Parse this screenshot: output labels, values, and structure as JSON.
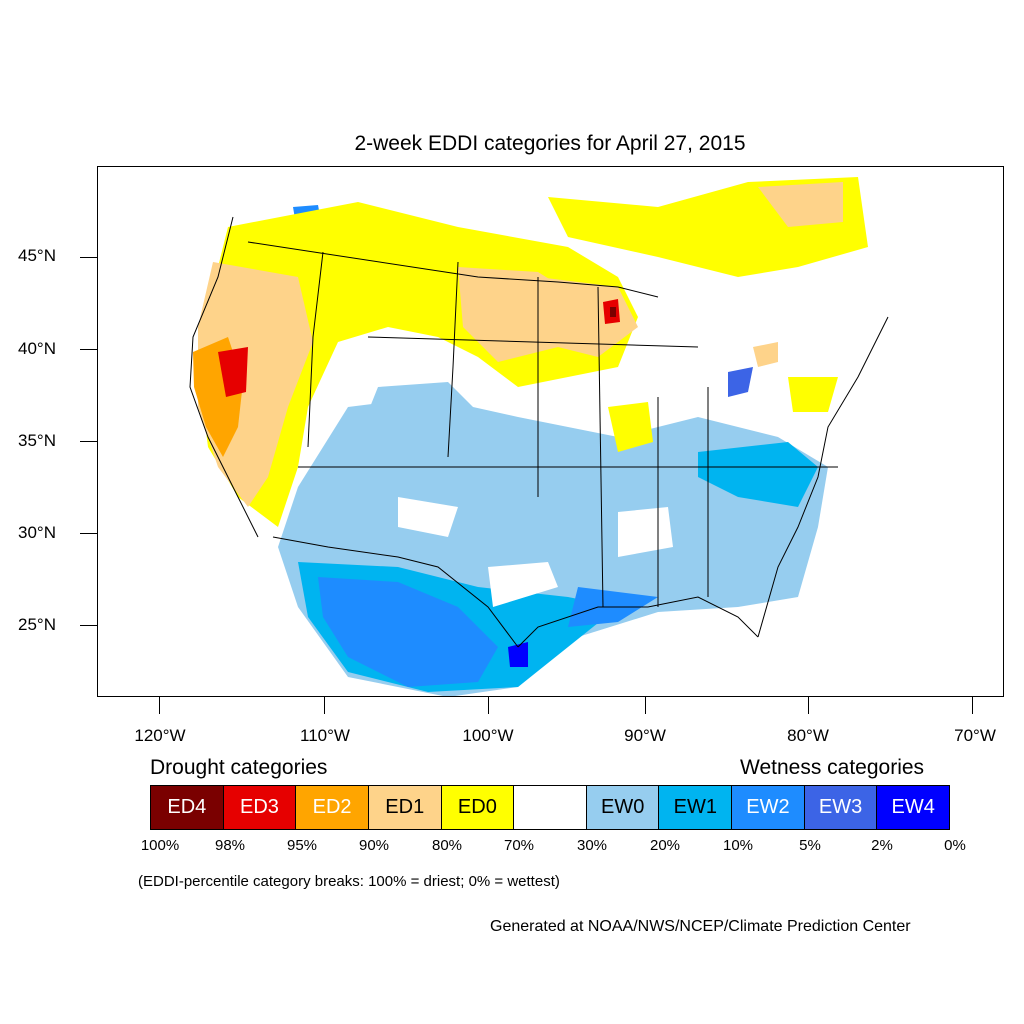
{
  "title": "2-week EDDI categories for April 27, 2015",
  "lat_labels": [
    "45°N",
    "40°N",
    "35°N",
    "30°N",
    "25°N"
  ],
  "lon_labels": [
    "120°W",
    "110°W",
    "100°W",
    "90°W",
    "80°W",
    "70°W"
  ],
  "legend": {
    "drought_heading": "Drought categories",
    "wetness_heading": "Wetness categories",
    "categories": [
      {
        "label": "ED4",
        "color": "#7a0000",
        "text_color": "#ffffff"
      },
      {
        "label": "ED3",
        "color": "#e60000",
        "text_color": "#ffffff"
      },
      {
        "label": "ED2",
        "color": "#ffa500",
        "text_color": "#ffffff"
      },
      {
        "label": "ED1",
        "color": "#fed38a",
        "text_color": "#000000"
      },
      {
        "label": "ED0",
        "color": "#ffff00",
        "text_color": "#000000"
      },
      {
        "label": "",
        "color": "#ffffff",
        "text_color": "#000000"
      },
      {
        "label": "EW0",
        "color": "#96cdef",
        "text_color": "#000000"
      },
      {
        "label": "EW1",
        "color": "#00b4f0",
        "text_color": "#000000"
      },
      {
        "label": "EW2",
        "color": "#1e8cff",
        "text_color": "#ffffff"
      },
      {
        "label": "EW3",
        "color": "#3c64e6",
        "text_color": "#ffffff"
      },
      {
        "label": "EW4",
        "color": "#0000ff",
        "text_color": "#ffffff"
      }
    ],
    "breaks": [
      "100%",
      "98%",
      "95%",
      "90%",
      "80%",
      "70%",
      "30%",
      "20%",
      "10%",
      "5%",
      "2%",
      "0%"
    ]
  },
  "note": "(EDDI-percentile category breaks: 100% = driest; 0% = wettest)",
  "credit": "Generated at NOAA/NWS/NCEP/Climate Prediction Center"
}
